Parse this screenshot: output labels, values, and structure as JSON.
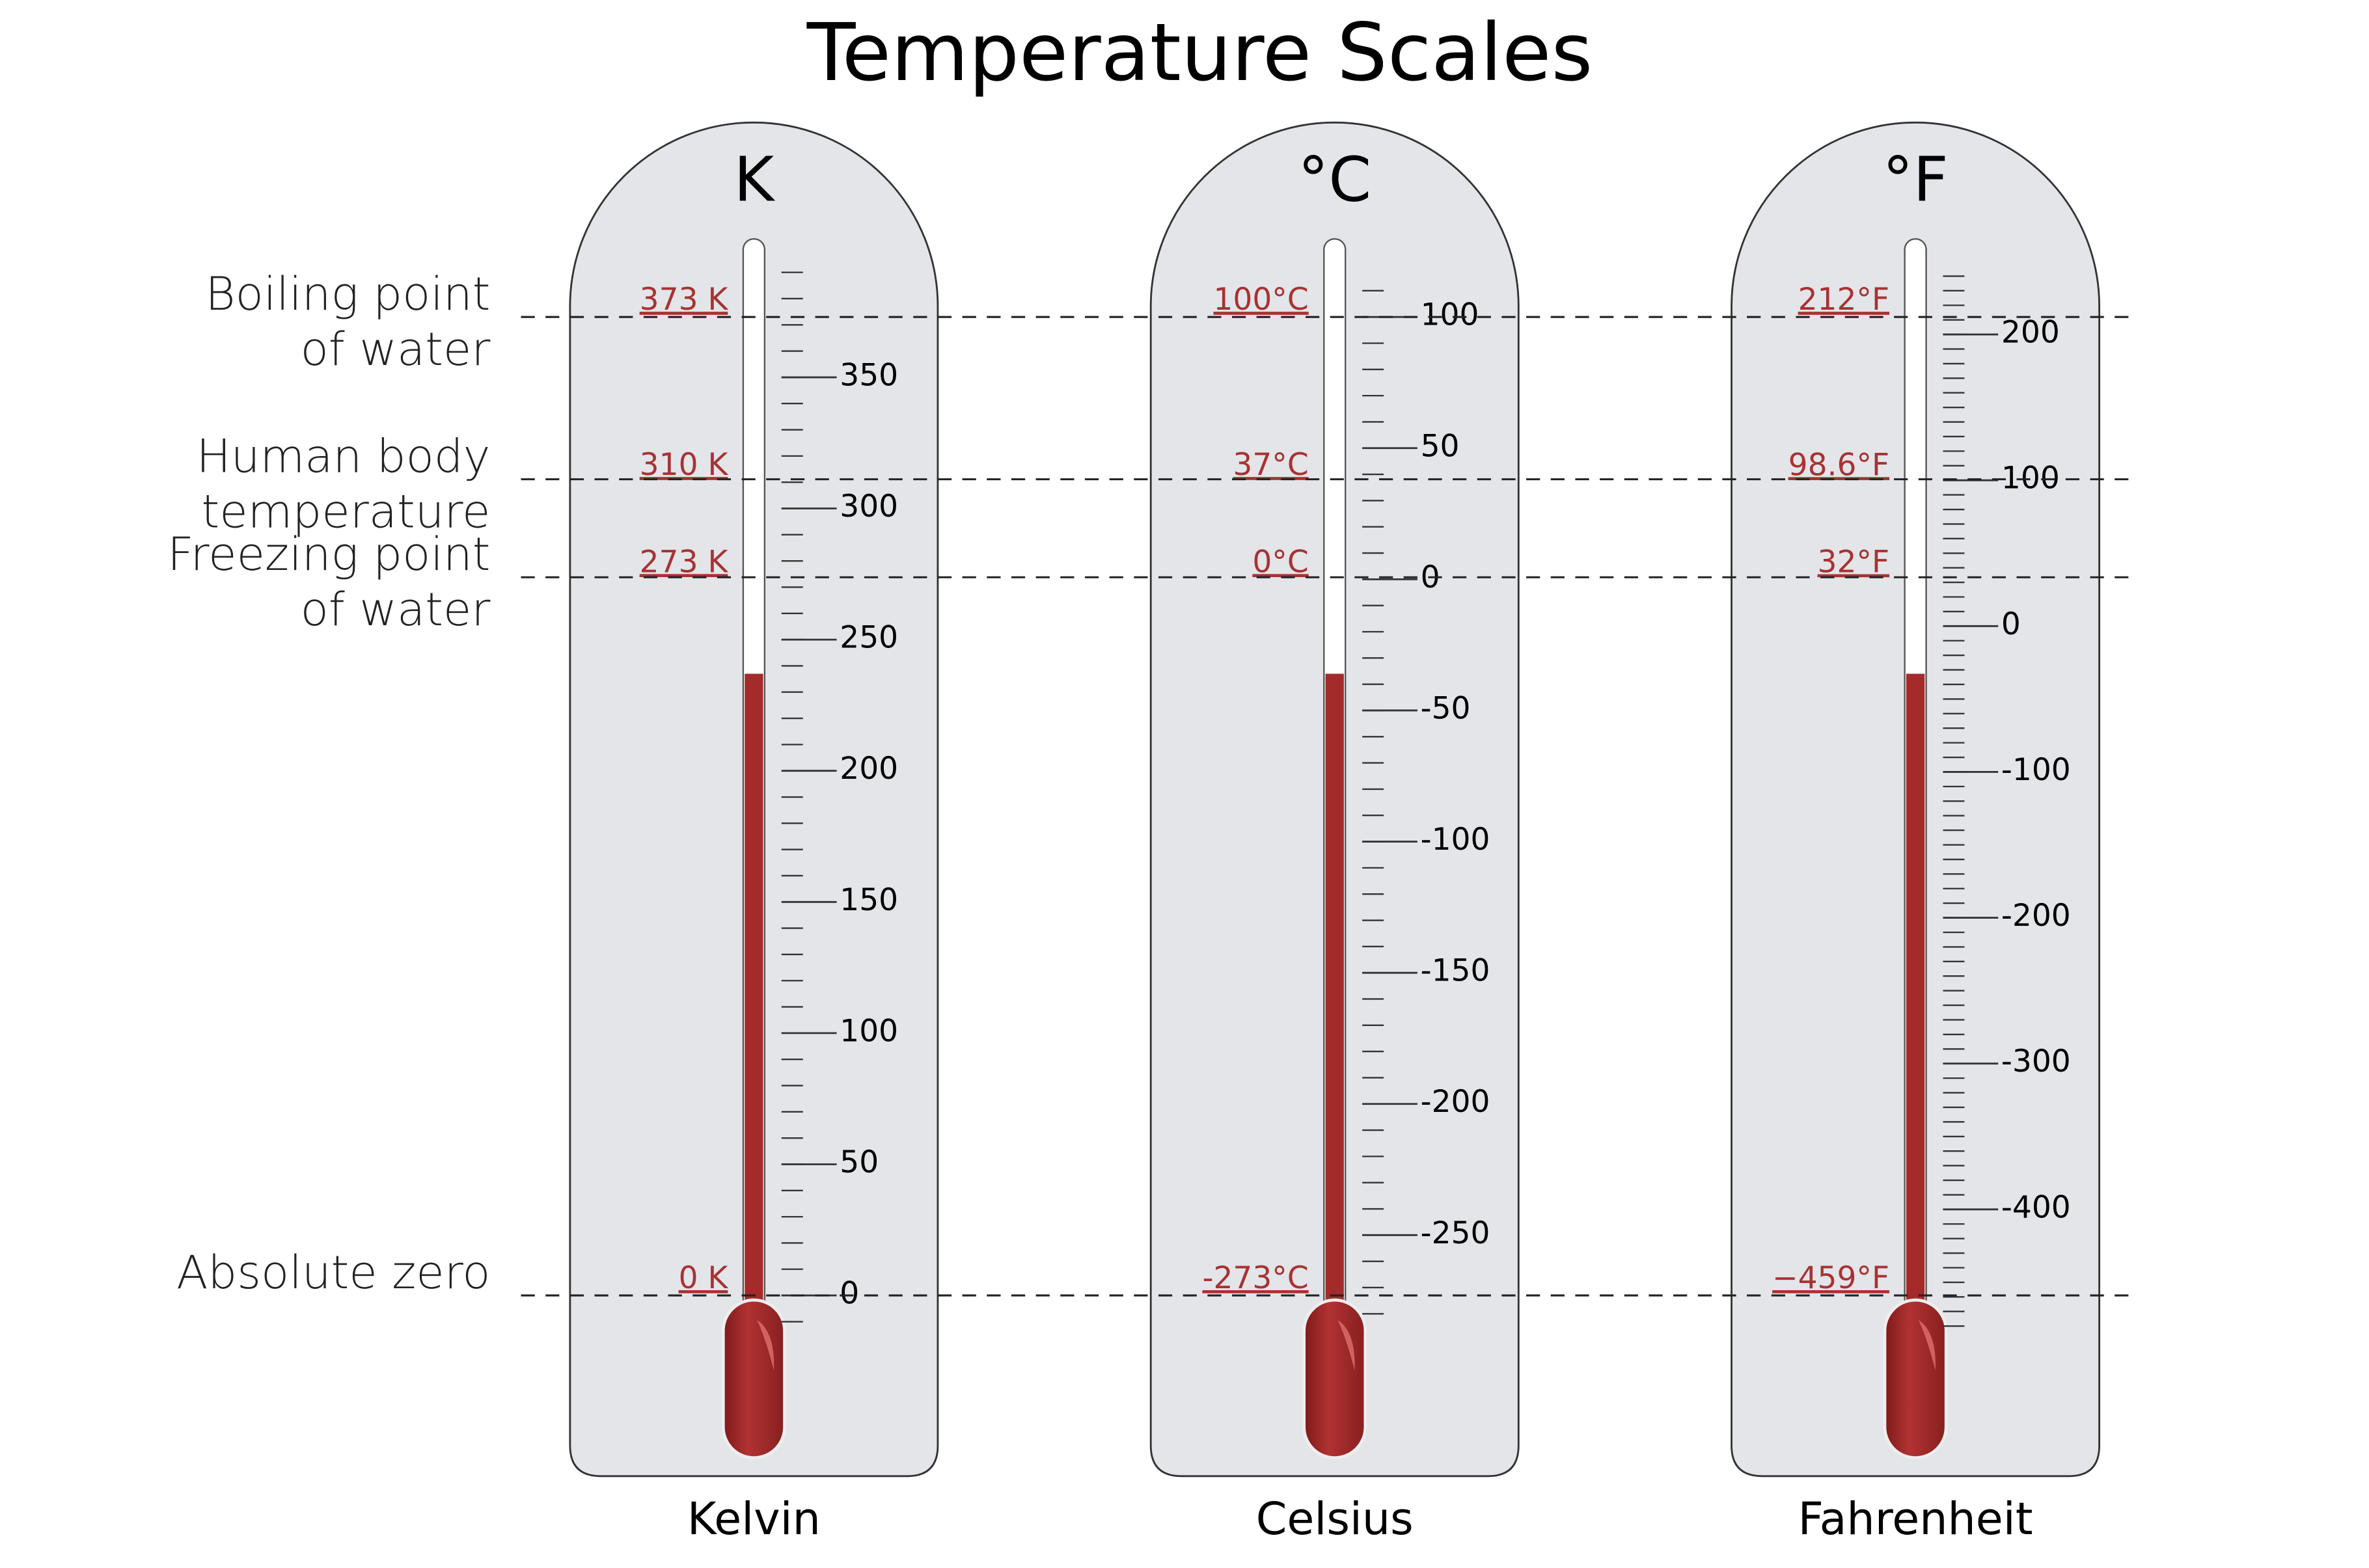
{
  "title": "Temperature Scales",
  "reference_points": [
    {
      "label_lines": [
        "Boiling point",
        "of water"
      ]
    },
    {
      "label_lines": [
        "Human body",
        "temperature"
      ]
    },
    {
      "label_lines": [
        "Freezing point",
        "of water"
      ]
    },
    {
      "label_lines": [
        "Absolute zero"
      ]
    }
  ],
  "thermometers": [
    {
      "symbol": "K",
      "name": "Kelvin",
      "ticks": [
        0,
        50,
        100,
        150,
        200,
        250,
        300,
        350
      ],
      "markers": [
        {
          "value": 373,
          "label": "373 K"
        },
        {
          "value": 310,
          "label": "310 K"
        },
        {
          "value": 273,
          "label": "273 K"
        },
        {
          "value": 0,
          "label": "0 K"
        }
      ]
    },
    {
      "symbol": "°C",
      "name": "Celsius",
      "ticks": [
        -250,
        -200,
        -150,
        -100,
        -50,
        0,
        50,
        100
      ],
      "markers": [
        {
          "value": 100,
          "label": "100°C"
        },
        {
          "value": 37,
          "label": "37°C"
        },
        {
          "value": 0,
          "label": "0°C"
        },
        {
          "value": -273,
          "label": "-273°C"
        }
      ]
    },
    {
      "symbol": "°F",
      "name": "Fahrenheit",
      "ticks": [
        -400,
        -300,
        -200,
        -100,
        0,
        100,
        200
      ],
      "markers": [
        {
          "value": 212,
          "label": "212°F"
        },
        {
          "value": 98.6,
          "label": "98.6°F"
        },
        {
          "value": 32,
          "label": "32°F"
        },
        {
          "value": -459,
          "label": "−459°F"
        }
      ]
    }
  ]
}
